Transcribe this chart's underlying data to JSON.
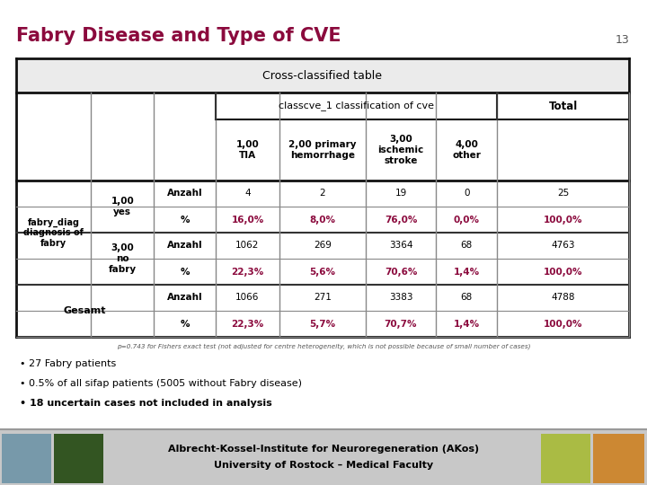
{
  "title": "Fabry Disease and Type of CVE",
  "slide_number": "13",
  "title_color": "#8B0A3D",
  "background_color": "#FFFFFF",
  "table_title": "Cross-classified table",
  "col_group_label": "classcve_1 classification of cve",
  "col_headers": [
    "1,00\nTIA",
    "2,00 primary\nhemorrhage",
    "3,00\nischemic\nstroke",
    "4,00\nother"
  ],
  "total_label": "Total",
  "row_anzahl_yes": [
    4,
    2,
    19,
    0,
    25
  ],
  "row_pct_yes": [
    "16,0%",
    "8,0%",
    "76,0%",
    "0,0%",
    "100,0%"
  ],
  "row_anzahl_no": [
    1062,
    269,
    3364,
    68,
    4763
  ],
  "row_pct_no": [
    "22,3%",
    "5,6%",
    "70,6%",
    "1,4%",
    "100,0%"
  ],
  "row_anzahl_tot": [
    1066,
    271,
    3383,
    68,
    4788
  ],
  "row_pct_tot": [
    "22,3%",
    "5,7%",
    "70,7%",
    "1,4%",
    "100,0%"
  ],
  "percent_color": "#8B0A3D",
  "normal_color": "#000000",
  "footer_note": "p=0.743 for Fishers exact test (not adjusted for centre heterogeneity, which is not possible because of small number of cases)",
  "bullets": [
    "27 Fabry patients",
    "0.5% of all sifap patients (5005 without Fabry disease)",
    "18 uncertain cases not included in analysis"
  ],
  "footer_inst_line1": "Albrecht-Kossel-Institute for Neuroregeneration (AKos)",
  "footer_inst_line2": "University of Rostock – Medical Faculty",
  "label_fabry": "fabry_diag\ndiagnosis of\nfabry",
  "label_yes": "1,00\nyes",
  "label_no": "3,00\nno\nfabry",
  "label_gesamt": "Gesamt",
  "label_anzahl": "Anzahl",
  "label_pct": "%"
}
